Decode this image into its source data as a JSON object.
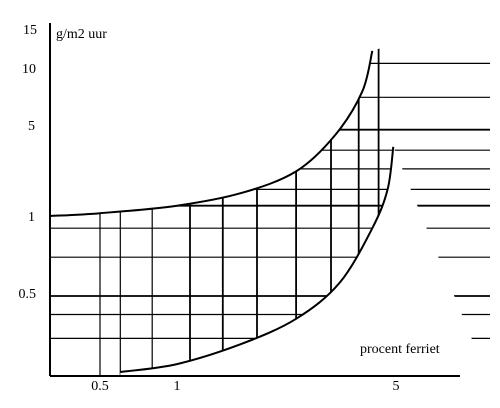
{
  "chart_data": {
    "type": "line",
    "title": "",
    "xlabel": "procent ferriet",
    "ylabel": "g/m2 uur",
    "x_ticks": [
      "0.5",
      "1",
      "5"
    ],
    "y_ticks": [
      "15",
      "10",
      "5",
      "1",
      "0.5"
    ],
    "x_scale": "log",
    "y_scale": "nonlinear",
    "xlim": [
      0.3,
      7
    ],
    "ylim": [
      0.2,
      15
    ],
    "grid": "cross-hatched band",
    "legend": "none",
    "series": [
      {
        "points": [
          {
            "x": 0.3,
            "y": 1.0
          },
          {
            "x": 0.5,
            "y": 1.05
          },
          {
            "x": 1.0,
            "y": 1.2
          },
          {
            "x": 1.6,
            "y": 1.5
          },
          {
            "x": 2.4,
            "y": 2.2
          },
          {
            "x": 3.2,
            "y": 4.2
          },
          {
            "x": 3.9,
            "y": 7.5
          },
          {
            "x": 4.2,
            "y": 12.0
          }
        ]
      },
      {
        "points": [
          {
            "x": 0.6,
            "y": 0.2
          },
          {
            "x": 1.0,
            "y": 0.22
          },
          {
            "x": 1.6,
            "y": 0.28
          },
          {
            "x": 2.4,
            "y": 0.38
          },
          {
            "x": 3.3,
            "y": 0.56
          },
          {
            "x": 4.2,
            "y": 0.9
          },
          {
            "x": 4.7,
            "y": 1.6
          },
          {
            "x": 4.9,
            "y": 3.4
          }
        ]
      }
    ]
  }
}
